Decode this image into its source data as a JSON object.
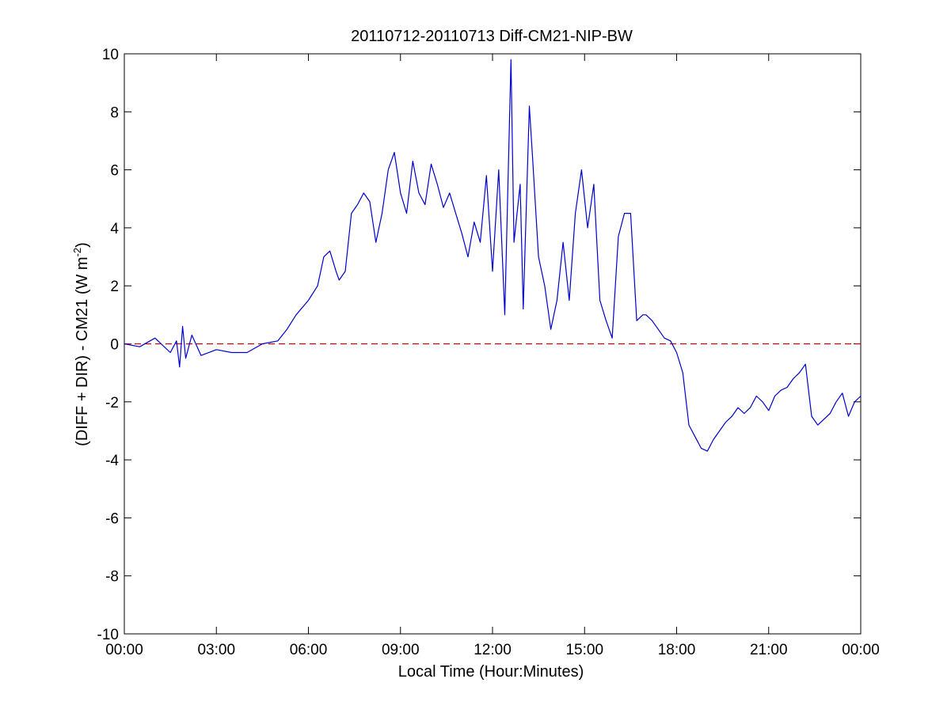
{
  "chart_data": {
    "type": "line",
    "title": "20110712-20110713 Diff-CM21-NIP-BW",
    "xlabel": "Local Time (Hour:Minutes)",
    "ylabel": {
      "main": "(DIFF + DIR) - CM21 (W m",
      "superscript": "-2",
      "close": ")"
    },
    "x_tick_labels": [
      "00:00",
      "03:00",
      "06:00",
      "09:00",
      "12:00",
      "15:00",
      "18:00",
      "21:00",
      "00:00"
    ],
    "x_tick_hours": [
      0,
      3,
      6,
      9,
      12,
      15,
      18,
      21,
      24
    ],
    "y_tick_labels": [
      "10",
      "8",
      "6",
      "4",
      "2",
      "0",
      "-2",
      "-4",
      "-6",
      "-8",
      "-10"
    ],
    "y_tick_values": [
      10,
      8,
      6,
      4,
      2,
      0,
      -2,
      -4,
      -6,
      -8,
      -10
    ],
    "xlim_hours": [
      0,
      24
    ],
    "ylim": [
      -10,
      10
    ],
    "grid": false,
    "series": [
      {
        "color": "#0000cc",
        "x_hours": [
          0,
          0.5,
          1.0,
          1.5,
          1.7,
          1.8,
          1.9,
          2.0,
          2.2,
          2.5,
          3.0,
          3.5,
          4.0,
          4.5,
          5.0,
          5.3,
          5.6,
          6.0,
          6.3,
          6.5,
          6.7,
          6.9,
          7.0,
          7.2,
          7.4,
          7.6,
          7.8,
          8.0,
          8.2,
          8.4,
          8.6,
          8.8,
          9.0,
          9.2,
          9.4,
          9.6,
          9.8,
          10.0,
          10.2,
          10.4,
          10.6,
          10.8,
          11.0,
          11.2,
          11.4,
          11.6,
          11.8,
          12.0,
          12.2,
          12.4,
          12.6,
          12.7,
          12.9,
          13.0,
          13.2,
          13.3,
          13.5,
          13.7,
          13.9,
          14.1,
          14.3,
          14.5,
          14.7,
          14.9,
          15.1,
          15.3,
          15.5,
          15.7,
          15.9,
          16.1,
          16.3,
          16.5,
          16.7,
          16.9,
          17.0,
          17.2,
          17.4,
          17.6,
          17.8,
          18.0,
          18.2,
          18.4,
          18.6,
          18.8,
          19.0,
          19.2,
          19.4,
          19.6,
          19.8,
          20.0,
          20.2,
          20.4,
          20.6,
          20.8,
          21.0,
          21.2,
          21.4,
          21.6,
          21.8,
          22.0,
          22.2,
          22.4,
          22.6,
          22.8,
          23.0,
          23.2,
          23.4,
          23.6,
          23.8,
          24.0
        ],
        "values": [
          0.0,
          -0.1,
          0.2,
          -0.3,
          0.1,
          -0.8,
          0.6,
          -0.5,
          0.3,
          -0.4,
          -0.2,
          -0.3,
          -0.3,
          0.0,
          0.1,
          0.5,
          1.0,
          1.5,
          2.0,
          3.0,
          3.2,
          2.5,
          2.2,
          2.5,
          4.5,
          4.8,
          5.2,
          4.9,
          3.5,
          4.5,
          6.0,
          6.6,
          5.2,
          4.5,
          6.3,
          5.2,
          4.8,
          6.2,
          5.5,
          4.7,
          5.2,
          4.5,
          3.8,
          3.0,
          4.2,
          3.5,
          5.8,
          2.5,
          6.0,
          1.0,
          9.8,
          3.5,
          5.5,
          1.2,
          8.2,
          6.5,
          3.0,
          2.0,
          0.5,
          1.5,
          3.5,
          1.5,
          4.5,
          6.0,
          4.0,
          5.5,
          1.5,
          0.8,
          0.2,
          3.7,
          4.5,
          4.5,
          0.8,
          1.0,
          1.0,
          0.8,
          0.5,
          0.2,
          0.1,
          -0.3,
          -1.0,
          -2.8,
          -3.2,
          -3.6,
          -3.7,
          -3.3,
          -3.0,
          -2.7,
          -2.5,
          -2.2,
          -2.4,
          -2.2,
          -1.8,
          -2.0,
          -2.3,
          -1.8,
          -1.6,
          -1.5,
          -1.2,
          -1.0,
          -0.7,
          -2.5,
          -2.8,
          -2.6,
          -2.4,
          -2.0,
          -1.7,
          -2.5,
          -2.0,
          -1.8
        ]
      }
    ],
    "reference_line": {
      "value": 0,
      "color": "#cc0000",
      "style": "dashed"
    }
  }
}
